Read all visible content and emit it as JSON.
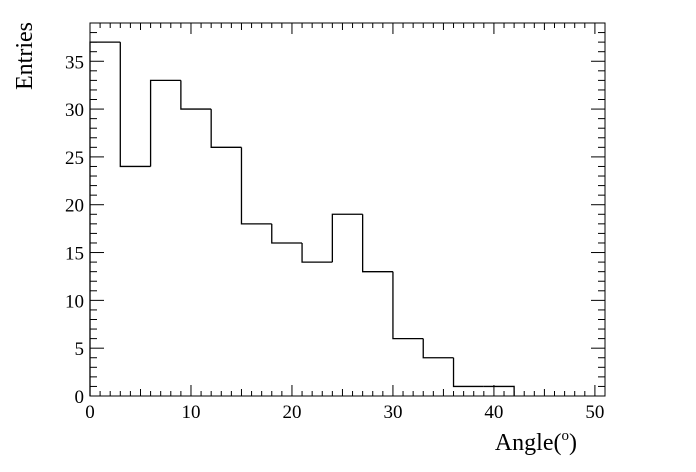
{
  "chart_data": {
    "type": "bar",
    "style": "step-histogram",
    "bin_edges": [
      0,
      3,
      6,
      9,
      12,
      15,
      18,
      21,
      24,
      27,
      30,
      33,
      36,
      39,
      42
    ],
    "values": [
      37,
      24,
      33,
      30,
      26,
      18,
      16,
      14,
      19,
      13,
      6,
      4,
      1,
      1
    ],
    "xlabel": "Angle(",
    "xlabel_superscript": "o",
    "xlabel_suffix": ")",
    "ylabel": "Entries",
    "xlim": [
      0,
      51
    ],
    "ylim": [
      0,
      39
    ],
    "x_ticks": [
      "0",
      "10",
      "20",
      "30",
      "40",
      "50"
    ],
    "y_ticks": [
      "0",
      "5",
      "10",
      "15",
      "20",
      "25",
      "30",
      "35"
    ],
    "grid": false,
    "line_color": "#000000",
    "background": "#ffffff"
  }
}
